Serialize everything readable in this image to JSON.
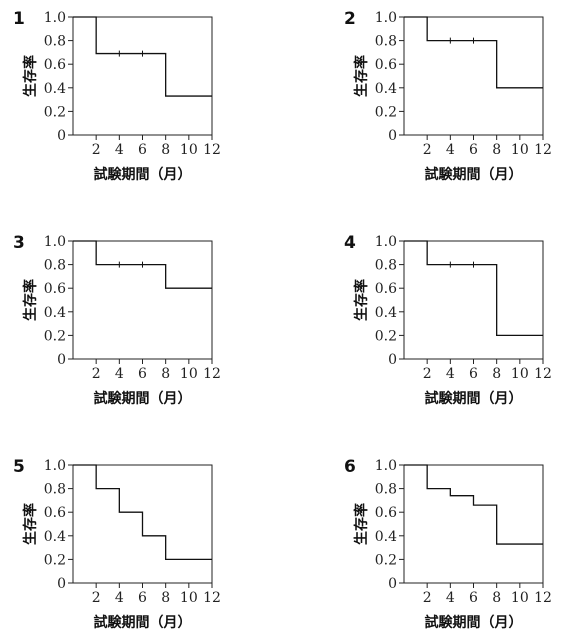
{
  "chart_data": [
    {
      "type": "line",
      "panel_label": "1",
      "xlabel": "試験期間（月）",
      "ylabel": "生存率",
      "xlim": [
        0,
        12
      ],
      "ylim": [
        0,
        1.0
      ],
      "x_ticks": [
        "2",
        "4",
        "6",
        "8",
        "10",
        "12"
      ],
      "y_ticks": [
        "0",
        "0.2",
        "0.4",
        "0.6",
        "0.8",
        "1.0"
      ],
      "steps": [
        {
          "x": 0,
          "y": 1.0
        },
        {
          "x": 2,
          "y": 0.69
        },
        {
          "x": 8,
          "y": 0.33
        },
        {
          "x": 12,
          "y": 0.33
        }
      ],
      "censored": [
        {
          "x": 4,
          "y": 0.69
        },
        {
          "x": 6,
          "y": 0.69
        }
      ]
    },
    {
      "type": "line",
      "panel_label": "2",
      "xlabel": "試験期間（月）",
      "ylabel": "生存率",
      "xlim": [
        0,
        12
      ],
      "ylim": [
        0,
        1.0
      ],
      "x_ticks": [
        "2",
        "4",
        "6",
        "8",
        "10",
        "12"
      ],
      "y_ticks": [
        "0",
        "0.2",
        "0.4",
        "0.6",
        "0.8",
        "1.0"
      ],
      "steps": [
        {
          "x": 0,
          "y": 1.0
        },
        {
          "x": 2,
          "y": 0.8
        },
        {
          "x": 8,
          "y": 0.4
        },
        {
          "x": 12,
          "y": 0.4
        }
      ],
      "censored": [
        {
          "x": 4,
          "y": 0.8
        },
        {
          "x": 6,
          "y": 0.8
        }
      ]
    },
    {
      "type": "line",
      "panel_label": "3",
      "xlabel": "試験期間（月）",
      "ylabel": "生存率",
      "xlim": [
        0,
        12
      ],
      "ylim": [
        0,
        1.0
      ],
      "x_ticks": [
        "2",
        "4",
        "6",
        "8",
        "10",
        "12"
      ],
      "y_ticks": [
        "0",
        "0.2",
        "0.4",
        "0.6",
        "0.8",
        "1.0"
      ],
      "steps": [
        {
          "x": 0,
          "y": 1.0
        },
        {
          "x": 2,
          "y": 0.8
        },
        {
          "x": 8,
          "y": 0.6
        },
        {
          "x": 12,
          "y": 0.6
        }
      ],
      "censored": [
        {
          "x": 4,
          "y": 0.8
        },
        {
          "x": 6,
          "y": 0.8
        }
      ]
    },
    {
      "type": "line",
      "panel_label": "4",
      "xlabel": "試験期間（月）",
      "ylabel": "生存率",
      "xlim": [
        0,
        12
      ],
      "ylim": [
        0,
        1.0
      ],
      "x_ticks": [
        "2",
        "4",
        "6",
        "8",
        "10",
        "12"
      ],
      "y_ticks": [
        "0",
        "0.2",
        "0.4",
        "0.6",
        "0.8",
        "1.0"
      ],
      "steps": [
        {
          "x": 0,
          "y": 1.0
        },
        {
          "x": 2,
          "y": 0.8
        },
        {
          "x": 8,
          "y": 0.2
        },
        {
          "x": 12,
          "y": 0.2
        }
      ],
      "censored": [
        {
          "x": 4,
          "y": 0.8
        },
        {
          "x": 6,
          "y": 0.8
        }
      ]
    },
    {
      "type": "line",
      "panel_label": "5",
      "xlabel": "試験期間（月）",
      "ylabel": "生存率",
      "xlim": [
        0,
        12
      ],
      "ylim": [
        0,
        1.0
      ],
      "x_ticks": [
        "2",
        "4",
        "6",
        "8",
        "10",
        "12"
      ],
      "y_ticks": [
        "0",
        "0.2",
        "0.4",
        "0.6",
        "0.8",
        "1.0"
      ],
      "steps": [
        {
          "x": 0,
          "y": 1.0
        },
        {
          "x": 2,
          "y": 0.8
        },
        {
          "x": 4,
          "y": 0.6
        },
        {
          "x": 6,
          "y": 0.4
        },
        {
          "x": 8,
          "y": 0.2
        },
        {
          "x": 12,
          "y": 0.2
        }
      ],
      "censored": []
    },
    {
      "type": "line",
      "panel_label": "6",
      "xlabel": "試験期間（月）",
      "ylabel": "生存率",
      "xlim": [
        0,
        12
      ],
      "ylim": [
        0,
        1.0
      ],
      "x_ticks": [
        "2",
        "4",
        "6",
        "8",
        "10",
        "12"
      ],
      "y_ticks": [
        "0",
        "0.2",
        "0.4",
        "0.6",
        "0.8",
        "1.0"
      ],
      "steps": [
        {
          "x": 0,
          "y": 1.0
        },
        {
          "x": 2,
          "y": 0.8
        },
        {
          "x": 4,
          "y": 0.74
        },
        {
          "x": 6,
          "y": 0.66
        },
        {
          "x": 8,
          "y": 0.33
        },
        {
          "x": 12,
          "y": 0.33
        }
      ],
      "censored": []
    }
  ]
}
